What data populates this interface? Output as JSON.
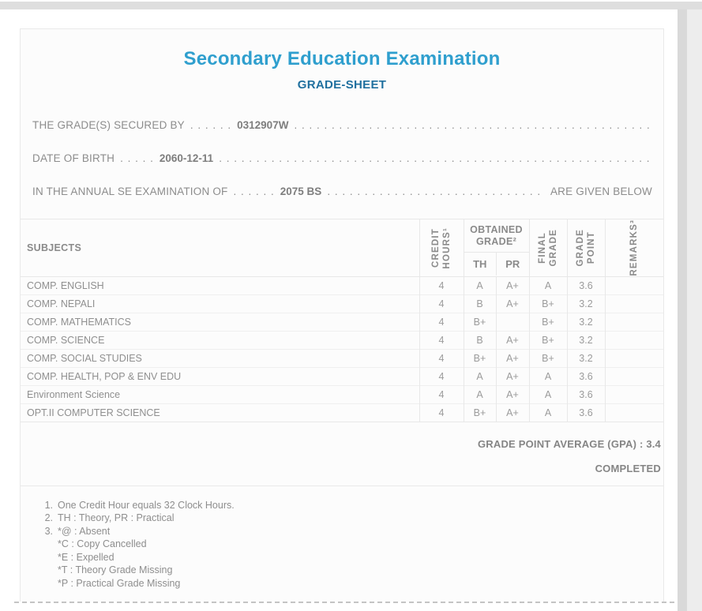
{
  "page": {
    "title": "Secondary Education Examination",
    "subtitle": "GRADE-SHEET"
  },
  "info": {
    "filler_dots": ". . . . . . . . . . . . . . . . . . . . . . . . . . . . . . . . . . . . . . . . . . . . . . . . . . . . . . . . . . . . . . . . . . . . . . . . . . . . . . . . . . . . . . . . . . . . . . . . . . . . . . . . . . . . . . . . . . . . . . . . . . . .",
    "lines": [
      {
        "label": "THE GRADE(S) SECURED BY",
        "dots": ". . . . . .",
        "value": "0312907W",
        "suffix": ""
      },
      {
        "label": "DATE OF BIRTH",
        "dots": ". . . . .",
        "value": "2060-12-11",
        "suffix": ""
      },
      {
        "label": "IN THE ANNUAL SE EXAMINATION OF",
        "dots": ". . . . . .",
        "value": "2075 BS",
        "suffix": "ARE GIVEN BELOW"
      }
    ]
  },
  "table": {
    "headers": {
      "subjects": "SUBJECTS",
      "credit_hours": [
        "CREDIT",
        "HOURS¹"
      ],
      "obtained_grade": [
        "OBTAINED",
        "GRADE²"
      ],
      "th": "TH",
      "pr": "PR",
      "final_grade": [
        "FINAL",
        "GRADE"
      ],
      "grade_point": [
        "GRADE",
        "POINT"
      ],
      "remarks": [
        "REMARKS³"
      ]
    },
    "rows": [
      {
        "subject": "COMP. ENGLISH",
        "credit": "4",
        "th": "A",
        "pr": "A+",
        "final": "A",
        "gp": "3.6",
        "remarks": ""
      },
      {
        "subject": "COMP. NEPALI",
        "credit": "4",
        "th": "B",
        "pr": "A+",
        "final": "B+",
        "gp": "3.2",
        "remarks": ""
      },
      {
        "subject": "COMP. MATHEMATICS",
        "credit": "4",
        "th": "B+",
        "pr": "",
        "final": "B+",
        "gp": "3.2",
        "remarks": ""
      },
      {
        "subject": "COMP. SCIENCE",
        "credit": "4",
        "th": "B",
        "pr": "A+",
        "final": "B+",
        "gp": "3.2",
        "remarks": ""
      },
      {
        "subject": "COMP. SOCIAL STUDIES",
        "credit": "4",
        "th": "B+",
        "pr": "A+",
        "final": "B+",
        "gp": "3.2",
        "remarks": ""
      },
      {
        "subject": "COMP. HEALTH, POP & ENV EDU",
        "credit": "4",
        "th": "A",
        "pr": "A+",
        "final": "A",
        "gp": "3.6",
        "remarks": ""
      },
      {
        "subject": "Environment Science",
        "credit": "4",
        "th": "A",
        "pr": "A+",
        "final": "A",
        "gp": "3.6",
        "remarks": ""
      },
      {
        "subject": "OPT.II COMPUTER SCIENCE",
        "credit": "4",
        "th": "B+",
        "pr": "A+",
        "final": "A",
        "gp": "3.6",
        "remarks": ""
      }
    ]
  },
  "summary": {
    "gpa_label": "GRADE POINT AVERAGE (GPA) : 3.4",
    "status": "COMPLETED"
  },
  "notes": [
    {
      "num": "1.",
      "lines": [
        "One Credit Hour equals 32 Clock Hours."
      ]
    },
    {
      "num": "2.",
      "lines": [
        "TH : Theory, PR : Practical"
      ]
    },
    {
      "num": "3.",
      "lines": [
        "*@ : Absent",
        "*C : Copy Cancelled",
        "*E : Expelled",
        "*T : Theory Grade Missing",
        "*P : Practical Grade Missing"
      ]
    }
  ],
  "colors": {
    "title_blue": "#2f9fce",
    "subtitle_blue": "#20709f",
    "text_gray": "#8c8c8c",
    "border_gray": "#e8e8e8"
  }
}
